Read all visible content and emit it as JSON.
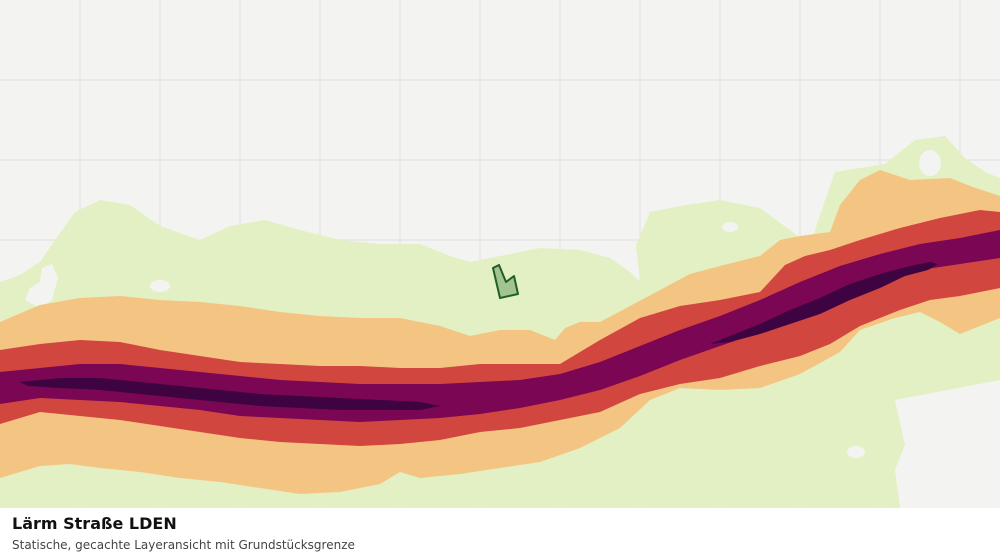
{
  "layer": {
    "title": "Lärm Straße LDEN",
    "subtitle": "Statische, gecachte Layeransicht mit Grundstücksgrenze"
  },
  "colors": {
    "background": "#f3f4f2",
    "grid": "#dedede",
    "band_outer": "#e3f0c3",
    "band_orange": "#f4c483",
    "band_red": "#d1463f",
    "band_purple": "#7b0654",
    "band_darkest": "#3d0441",
    "parcel_fill": "#9bbf8a",
    "parcel_stroke": "#1f5f28"
  }
}
